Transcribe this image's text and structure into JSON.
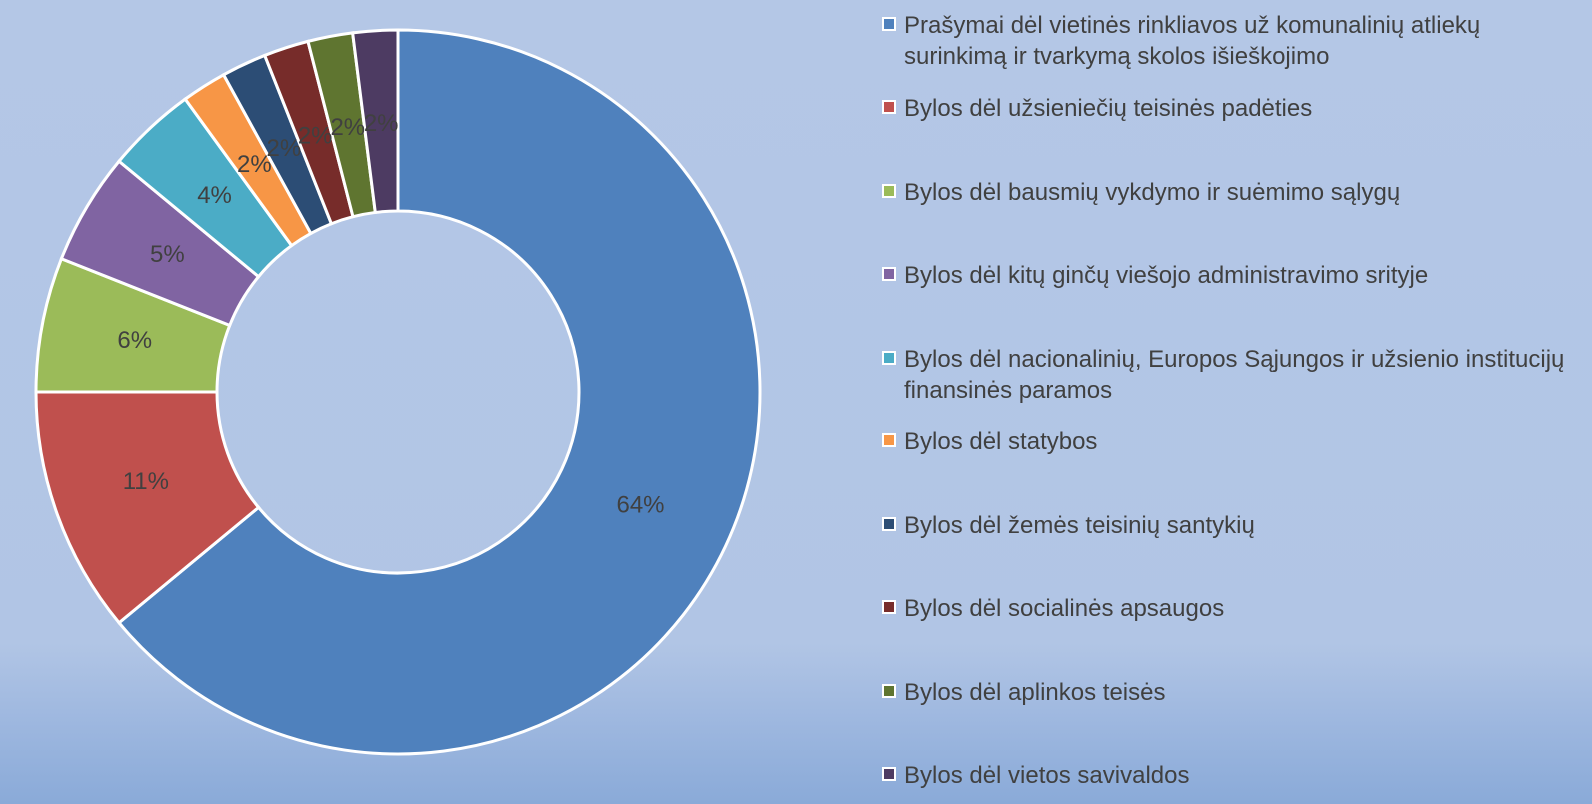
{
  "chart_data": {
    "type": "donut",
    "categories": [
      "Prašymai dėl vietinės rinkliavos už komunalinių atliekų surinkimą ir tvarkymą skolos išieškojimo",
      "Bylos dėl užsieniečių teisinės padėties",
      "Bylos dėl bausmių vykdymo ir suėmimo sąlygų",
      "Bylos dėl kitų ginčų viešojo administravimo srityje",
      "Bylos dėl nacionalinių, Europos Sąjungos ir užsienio institucijų finansinės paramos",
      "Bylos dėl statybos",
      "Bylos dėl žemės teisinių santykių",
      "Bylos dėl socialinės apsaugos",
      "Bylos dėl aplinkos teisės",
      "Bylos dėl vietos savivaldos"
    ],
    "values": [
      64,
      11,
      6,
      5,
      4,
      2,
      2,
      2,
      2,
      2
    ],
    "value_labels": [
      "64%",
      "11%",
      "6%",
      "5%",
      "4%",
      "2%",
      "2%",
      "2%",
      "2%",
      "2%"
    ],
    "colors": [
      "#4f81bd",
      "#c0504d",
      "#9bbb59",
      "#8064a2",
      "#4bacc6",
      "#f79646",
      "#2c4d75",
      "#772c2a",
      "#5f7530",
      "#4d3b62"
    ],
    "legend": "right"
  }
}
